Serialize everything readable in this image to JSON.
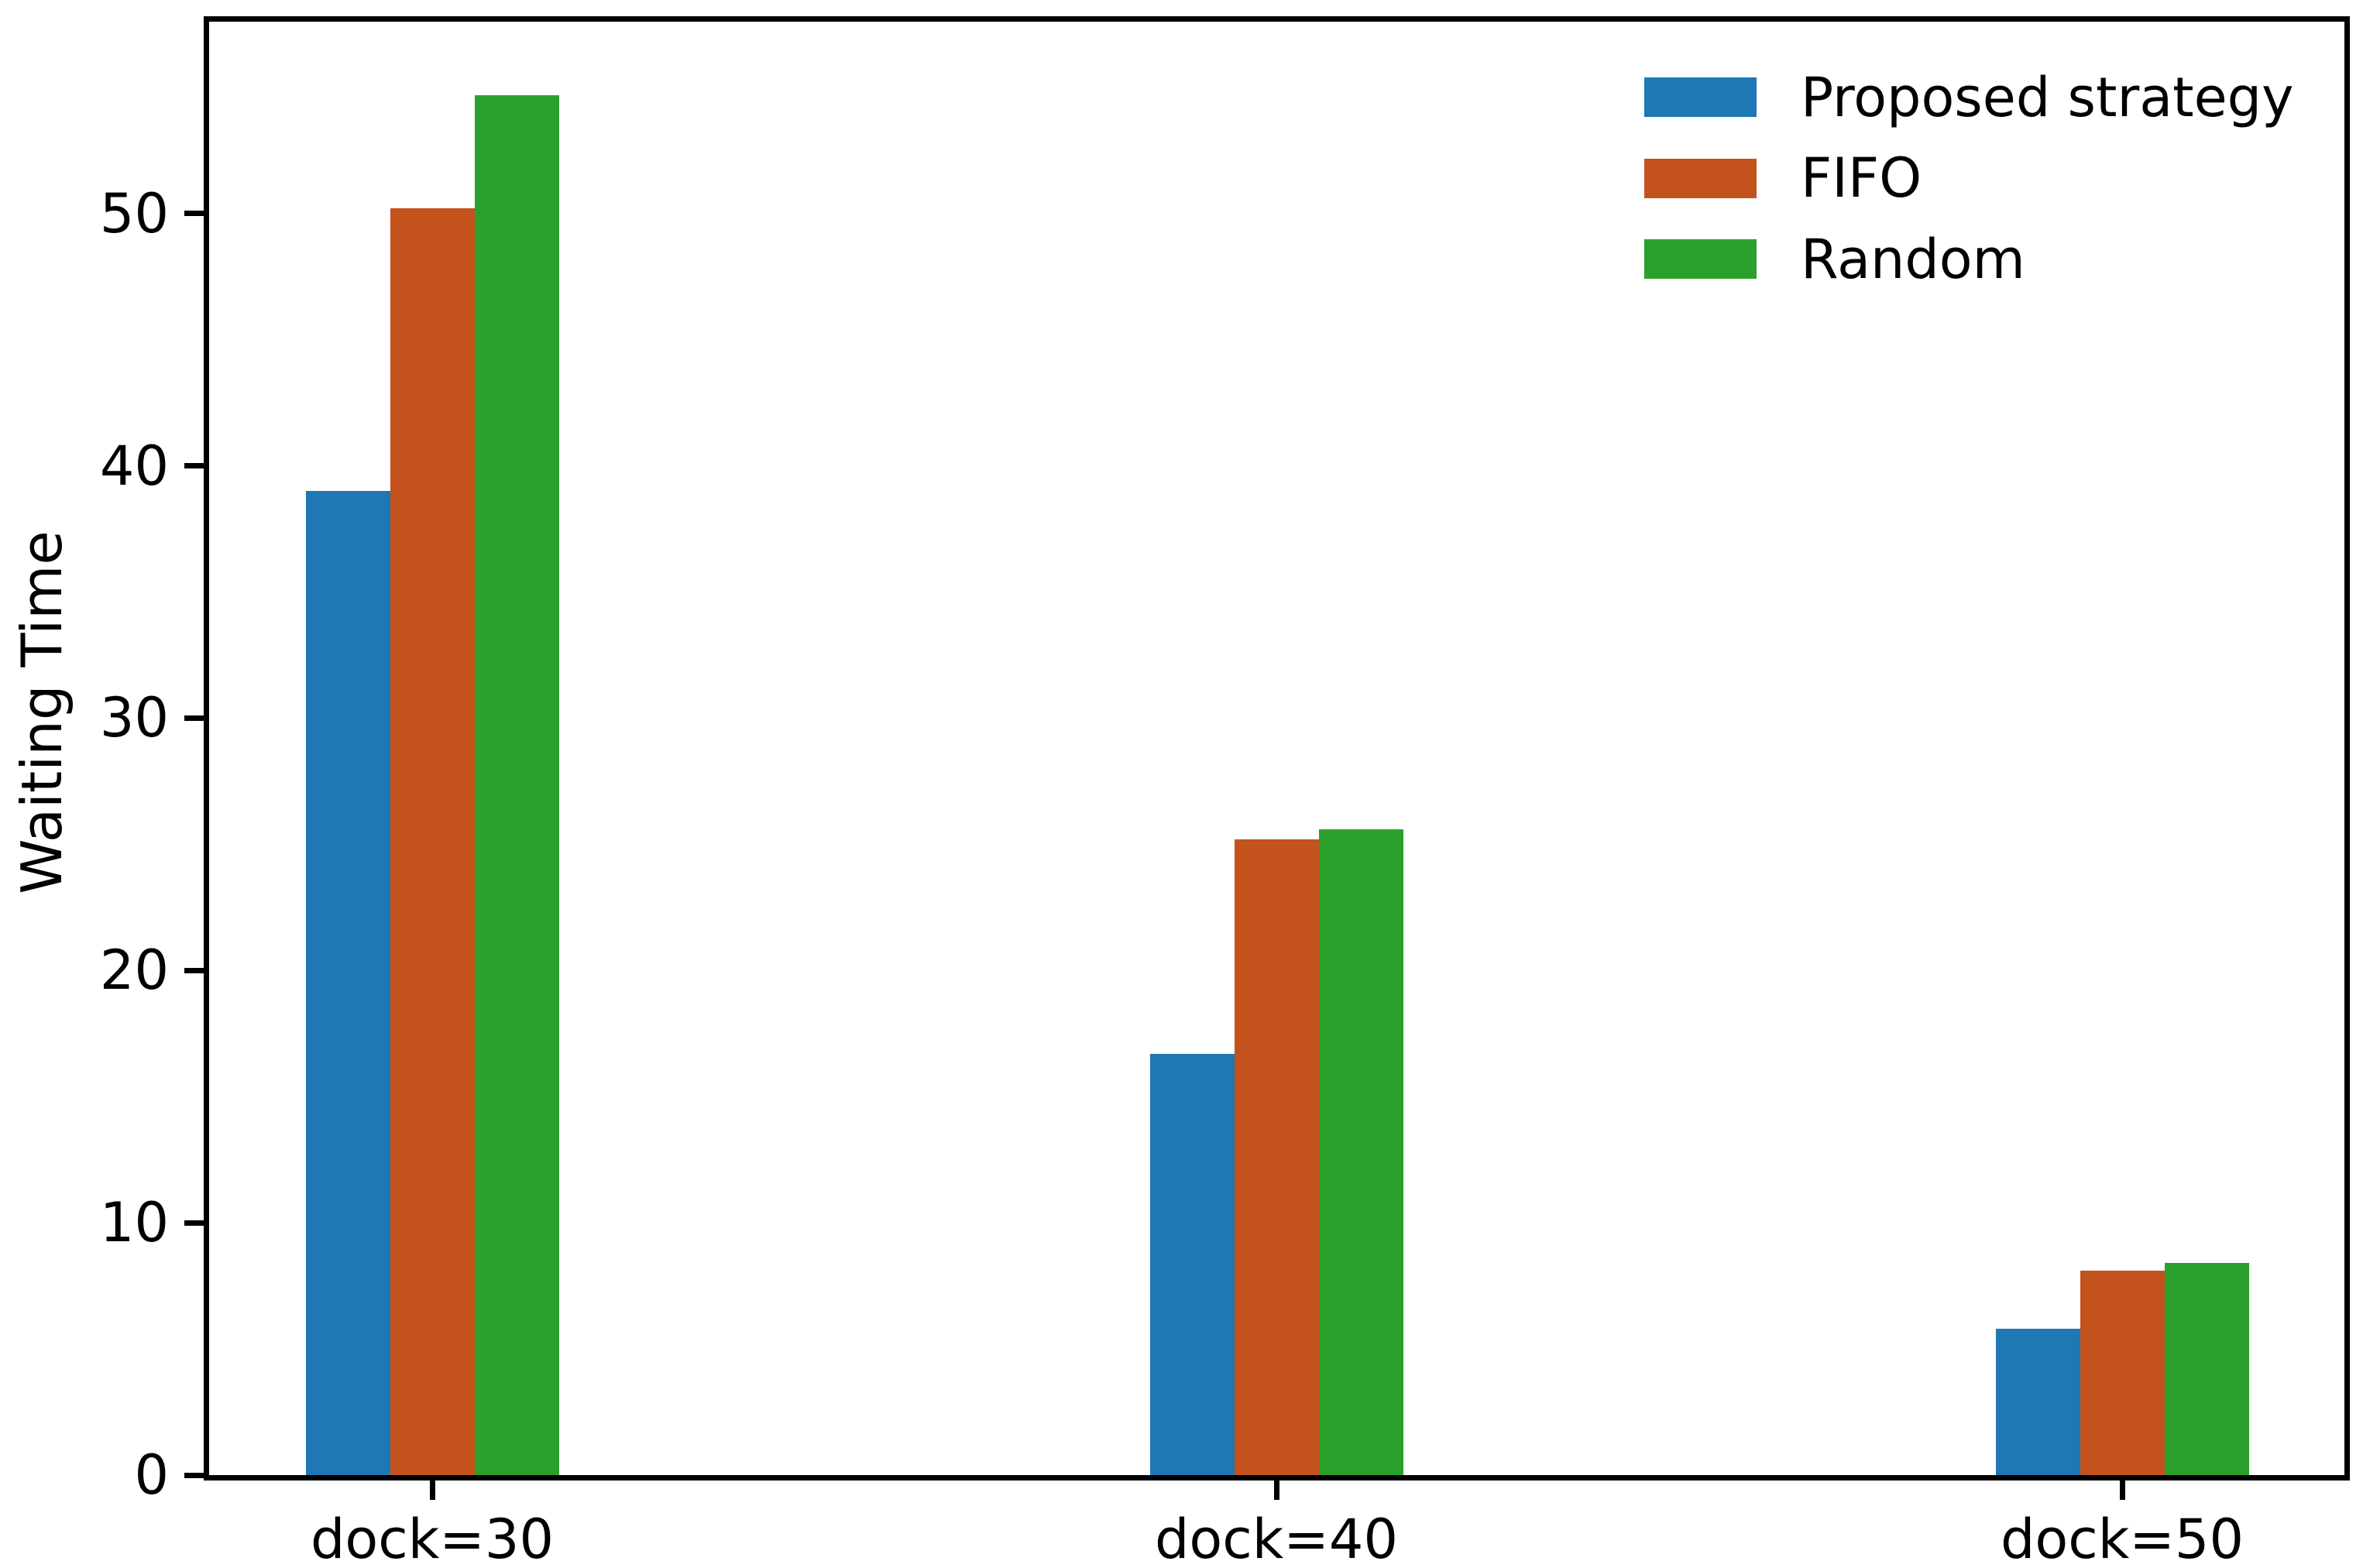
{
  "chart_data": {
    "type": "bar",
    "title": "",
    "xlabel": "",
    "ylabel": "Waiting Time",
    "categories": [
      "dock=30",
      "dock=40",
      "dock=50"
    ],
    "series": [
      {
        "name": "Proposed strategy",
        "color": "#1f77b4",
        "values": [
          39.0,
          16.7,
          5.8
        ]
      },
      {
        "name": "FIFO",
        "color": "#c4521c",
        "values": [
          50.2,
          25.2,
          8.1
        ]
      },
      {
        "name": "Random",
        "color": "#2ca02c",
        "values": [
          54.7,
          25.6,
          8.4
        ]
      }
    ],
    "yticks": [
      0,
      10,
      20,
      30,
      40,
      50
    ],
    "ylim": [
      0,
      57.6
    ],
    "grid": false,
    "legend": {
      "position": "upper right",
      "frame": false,
      "entries": [
        "Proposed strategy",
        "FIFO",
        "Random"
      ]
    },
    "axis_color": "#000000",
    "background": "#ffffff"
  }
}
